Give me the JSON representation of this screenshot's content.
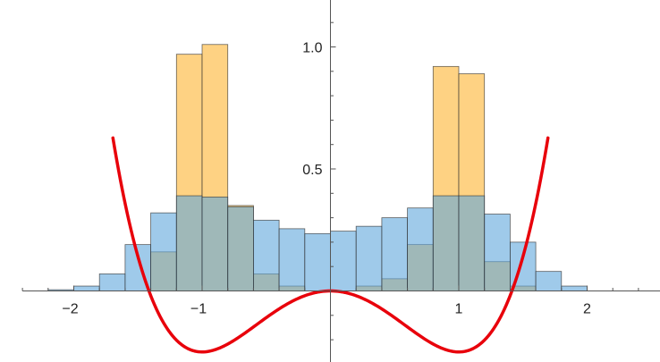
{
  "chart_data": {
    "type": "bar",
    "title": "",
    "xlabel": "",
    "ylabel": "",
    "xlim": [
      -2.4,
      2.5
    ],
    "ylim": [
      -0.28,
      1.18
    ],
    "bin_width": 0.2,
    "bin_edges": [
      -2.2,
      -2.0,
      -1.8,
      -1.6,
      -1.4,
      -1.2,
      -1.0,
      -0.8,
      -0.6,
      -0.4,
      -0.2,
      0.0,
      0.2,
      0.4,
      0.6,
      0.8,
      1.0,
      1.2,
      1.4,
      1.6,
      1.8,
      2.0
    ],
    "x_ticks": [
      -2,
      -1,
      1,
      2
    ],
    "x_tick_labels": [
      "−2",
      "−1",
      "1",
      "2"
    ],
    "y_ticks": [
      0.5,
      1.0
    ],
    "y_tick_labels": [
      "0.5",
      "1.0"
    ],
    "grid": false,
    "series": [
      {
        "type": "histogram",
        "color": "#fdbf4e",
        "opacity": 0.7,
        "values": [
          0,
          0,
          0,
          0,
          0.16,
          0.97,
          1.01,
          0.35,
          0.07,
          0.02,
          0,
          0,
          0.02,
          0.05,
          0.19,
          0.92,
          0.89,
          0.12,
          0.02,
          0,
          0
        ]
      },
      {
        "type": "histogram",
        "color": "#5fa7dc",
        "opacity": 0.6,
        "values": [
          0.005,
          0.02,
          0.07,
          0.19,
          0.32,
          0.39,
          0.385,
          0.345,
          0.29,
          0.255,
          0.235,
          0.245,
          0.265,
          0.3,
          0.34,
          0.39,
          0.39,
          0.315,
          0.2,
          0.08,
          0.02
        ]
      },
      {
        "type": "line",
        "color": "#e8000b",
        "x_range": [
          -1.695,
          1.695
        ],
        "function": "y = (x^2 - 1)^2 / 4 - 0.25"
      }
    ]
  }
}
